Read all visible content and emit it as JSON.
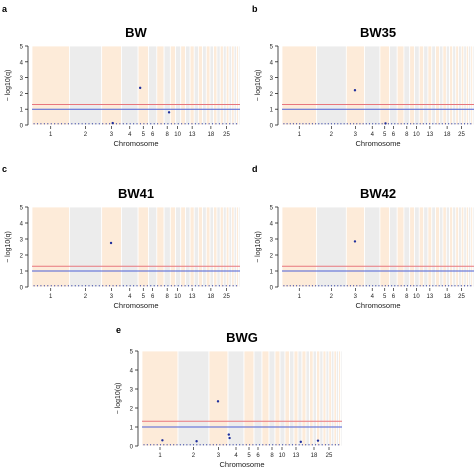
{
  "figure": {
    "colors": {
      "band_peach": "#fdebd9",
      "band_grey": "#ececec",
      "band_divider": "#ffffff",
      "threshold_red": "#e8767e",
      "threshold_blue": "#4b5fd6",
      "point": "#1f2f9c",
      "axis": "#222222"
    }
  },
  "chart_data": [
    {
      "panel_label": "a",
      "type": "scatter",
      "title": "BW",
      "ylabel": "− log10(q)",
      "xlabel": "Chromosome",
      "ylim": [
        0,
        5
      ],
      "yticks": [
        0,
        1,
        2,
        3,
        4,
        5
      ],
      "xtick_labels": [
        "1",
        "2",
        "3",
        "4",
        "5",
        "6",
        "8",
        "10",
        "13",
        "18",
        "25"
      ],
      "thresholds": {
        "red": 1.3,
        "blue": 1.0
      },
      "points": [
        {
          "chr": "4-5",
          "neglog10q": 2.35
        },
        {
          "chr": "8",
          "neglog10q": 0.8
        },
        {
          "chr": "3",
          "neglog10q": 0.12
        }
      ]
    },
    {
      "panel_label": "b",
      "type": "scatter",
      "title": "BW35",
      "ylabel": "− log10(q)",
      "xlabel": "Chromosome",
      "ylim": [
        0,
        5
      ],
      "yticks": [
        0,
        1,
        2,
        3,
        4,
        5
      ],
      "xtick_labels": [
        "1",
        "2",
        "3",
        "4",
        "5",
        "6",
        "8",
        "10",
        "13",
        "18",
        "25"
      ],
      "thresholds": {
        "red": 1.3,
        "blue": 1.0
      },
      "points": [
        {
          "chr": "3",
          "neglog10q": 2.2
        },
        {
          "chr": "5",
          "neglog10q": 0.1
        }
      ]
    },
    {
      "panel_label": "c",
      "type": "scatter",
      "title": "BW41",
      "ylabel": "− log10(q)",
      "xlabel": "Chromosome",
      "ylim": [
        0,
        5
      ],
      "yticks": [
        0,
        1,
        2,
        3,
        4,
        5
      ],
      "xtick_labels": [
        "1",
        "2",
        "3",
        "4",
        "5",
        "6",
        "8",
        "10",
        "13",
        "18",
        "25"
      ],
      "thresholds": {
        "red": 1.3,
        "blue": 1.0
      },
      "points": [
        {
          "chr": "3",
          "neglog10q": 2.75
        }
      ]
    },
    {
      "panel_label": "d",
      "type": "scatter",
      "title": "BW42",
      "ylabel": "− log10(q)",
      "xlabel": "Chromosome",
      "ylim": [
        0,
        5
      ],
      "yticks": [
        0,
        1,
        2,
        3,
        4,
        5
      ],
      "xtick_labels": [
        "1",
        "2",
        "3",
        "4",
        "5",
        "6",
        "8",
        "10",
        "13",
        "18",
        "25"
      ],
      "thresholds": {
        "red": 1.3,
        "blue": 1.0
      },
      "points": [
        {
          "chr": "3",
          "neglog10q": 2.85
        }
      ]
    },
    {
      "panel_label": "e",
      "type": "scatter",
      "title": "BWG",
      "ylabel": "− log10(q)",
      "xlabel": "Chromosome",
      "ylim": [
        0,
        5
      ],
      "yticks": [
        0,
        1,
        2,
        3,
        4,
        5
      ],
      "xtick_labels": [
        "1",
        "2",
        "3",
        "4",
        "5",
        "6",
        "8",
        "10",
        "13",
        "18",
        "25"
      ],
      "thresholds": {
        "red": 1.3,
        "blue": 1.0
      },
      "points": [
        {
          "chr": "3",
          "neglog10q": 2.35
        },
        {
          "chr": "3-4",
          "neglog10q": 0.6
        },
        {
          "chr": "3-4",
          "neglog10q": 0.42
        },
        {
          "chr": "1",
          "neglog10q": 0.3
        },
        {
          "chr": "2",
          "neglog10q": 0.25
        },
        {
          "chr": "18",
          "neglog10q": 0.28
        },
        {
          "chr": "13",
          "neglog10q": 0.22
        }
      ]
    }
  ]
}
